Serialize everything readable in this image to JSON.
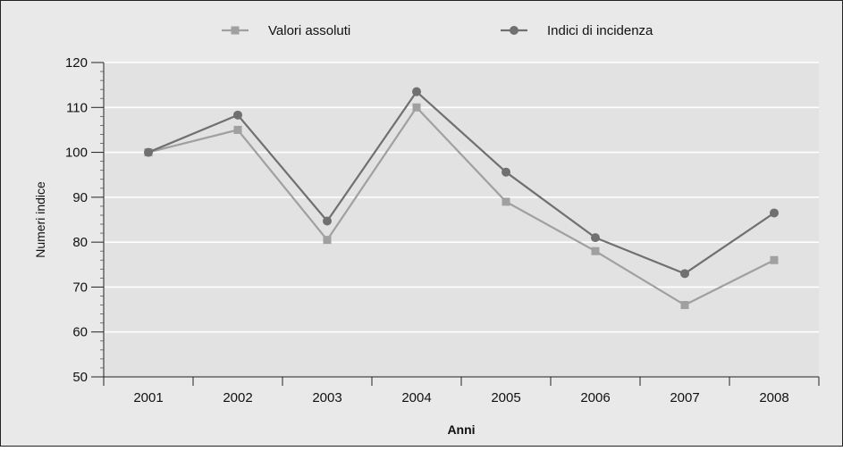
{
  "chart_data": {
    "type": "line",
    "title": "",
    "xlabel": "Anni",
    "ylabel": "Numeri indice",
    "categories": [
      "2001",
      "2002",
      "2003",
      "2004",
      "2005",
      "2006",
      "2007",
      "2008"
    ],
    "ylim": [
      50,
      120
    ],
    "yticks": [
      50,
      60,
      70,
      80,
      90,
      100,
      110,
      120
    ],
    "grid": true,
    "legend_position": "top",
    "series": [
      {
        "name": "Valori assoluti",
        "values": [
          100,
          105,
          80.5,
          110,
          89,
          78,
          66,
          76
        ],
        "color": "#a0a0a0",
        "marker": "square"
      },
      {
        "name": "Indici di incidenza",
        "values": [
          100,
          108.3,
          84.7,
          113.5,
          95.6,
          81,
          73,
          86.5
        ],
        "color": "#707070",
        "marker": "circle"
      }
    ],
    "colors": {
      "plot_background": "#e2e2e2",
      "page_background": "#e9e9e9",
      "gridline": "#ffffff",
      "text": "#111111"
    }
  }
}
